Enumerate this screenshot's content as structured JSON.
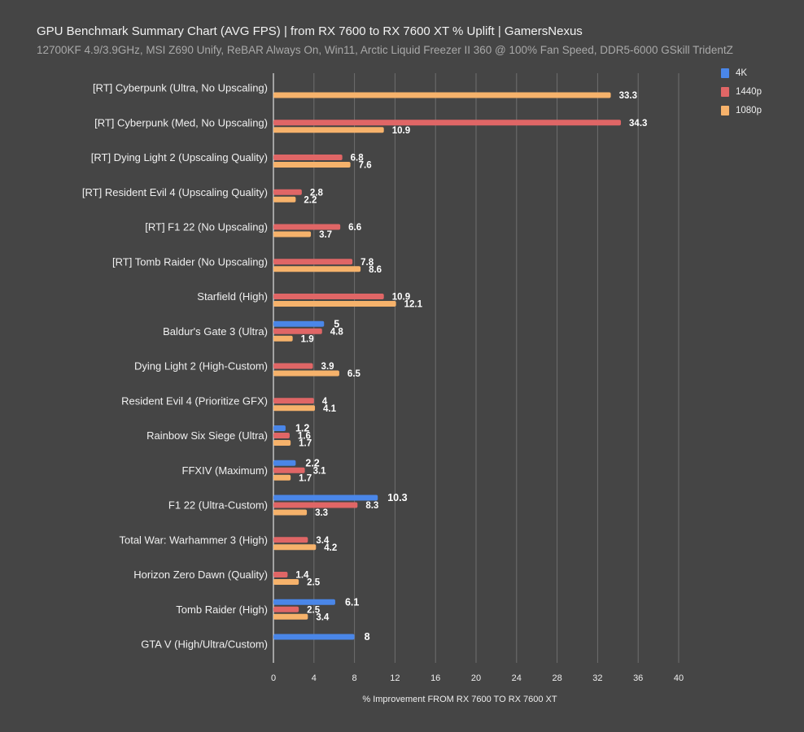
{
  "chart_data": {
    "type": "bar",
    "orientation": "horizontal",
    "title": "GPU Benchmark Summary Chart (AVG FPS) | from RX 7600 to RX 7600 XT % Uplift | GamersNexus",
    "subtitle": "12700KF 4.9/3.9GHz, MSI Z690 Unify, ReBAR Always On, Win11, Arctic Liquid Freezer II 360 @ 100% Fan Speed, DDR5-6000 GSkill TridentZ",
    "xlabel": "% Improvement FROM RX 7600 TO RX 7600 XT",
    "ylabel": "",
    "xlim": [
      0,
      40
    ],
    "xticks": [
      0,
      4,
      8,
      12,
      16,
      20,
      24,
      28,
      32,
      36,
      40
    ],
    "grid": true,
    "legend_position": "top-right",
    "categories": [
      "[RT] Cyberpunk (Ultra, No Upscaling)",
      "[RT] Cyberpunk (Med, No Upscaling)",
      "[RT] Dying Light 2 (Upscaling Quality)",
      "[RT] Resident Evil 4 (Upscaling Quality)",
      "[RT] F1 22 (No Upscaling)",
      "[RT] Tomb Raider (No Upscaling)",
      "Starfield (High)",
      "Baldur's Gate 3 (Ultra)",
      "Dying Light 2 (High-Custom)",
      "Resident Evil 4 (Prioritize GFX)",
      "Rainbow Six Siege (Ultra)",
      "FFXIV (Maximum)",
      "F1 22 (Ultra-Custom)",
      "Total War: Warhammer 3 (High)",
      "Horizon Zero Dawn (Quality)",
      "Tomb Raider (High)",
      "GTA V (High/Ultra/Custom)"
    ],
    "series": [
      {
        "name": "4K",
        "color": "#4a86e8",
        "values": [
          null,
          null,
          null,
          null,
          null,
          null,
          null,
          5,
          null,
          null,
          1.2,
          2.2,
          10.3,
          null,
          null,
          6.1,
          8
        ]
      },
      {
        "name": "1440p",
        "color": "#e06666",
        "values": [
          null,
          34.3,
          6.8,
          2.8,
          6.6,
          7.8,
          10.9,
          4.8,
          3.9,
          4,
          1.6,
          3.1,
          8.3,
          3.4,
          1.4,
          2.5,
          null
        ]
      },
      {
        "name": "1080p",
        "color": "#f6b26b",
        "values": [
          33.3,
          10.9,
          7.6,
          2.2,
          3.7,
          8.6,
          12.1,
          1.9,
          6.5,
          4.1,
          1.7,
          1.7,
          3.3,
          4.2,
          2.5,
          3.4,
          null
        ]
      }
    ]
  }
}
